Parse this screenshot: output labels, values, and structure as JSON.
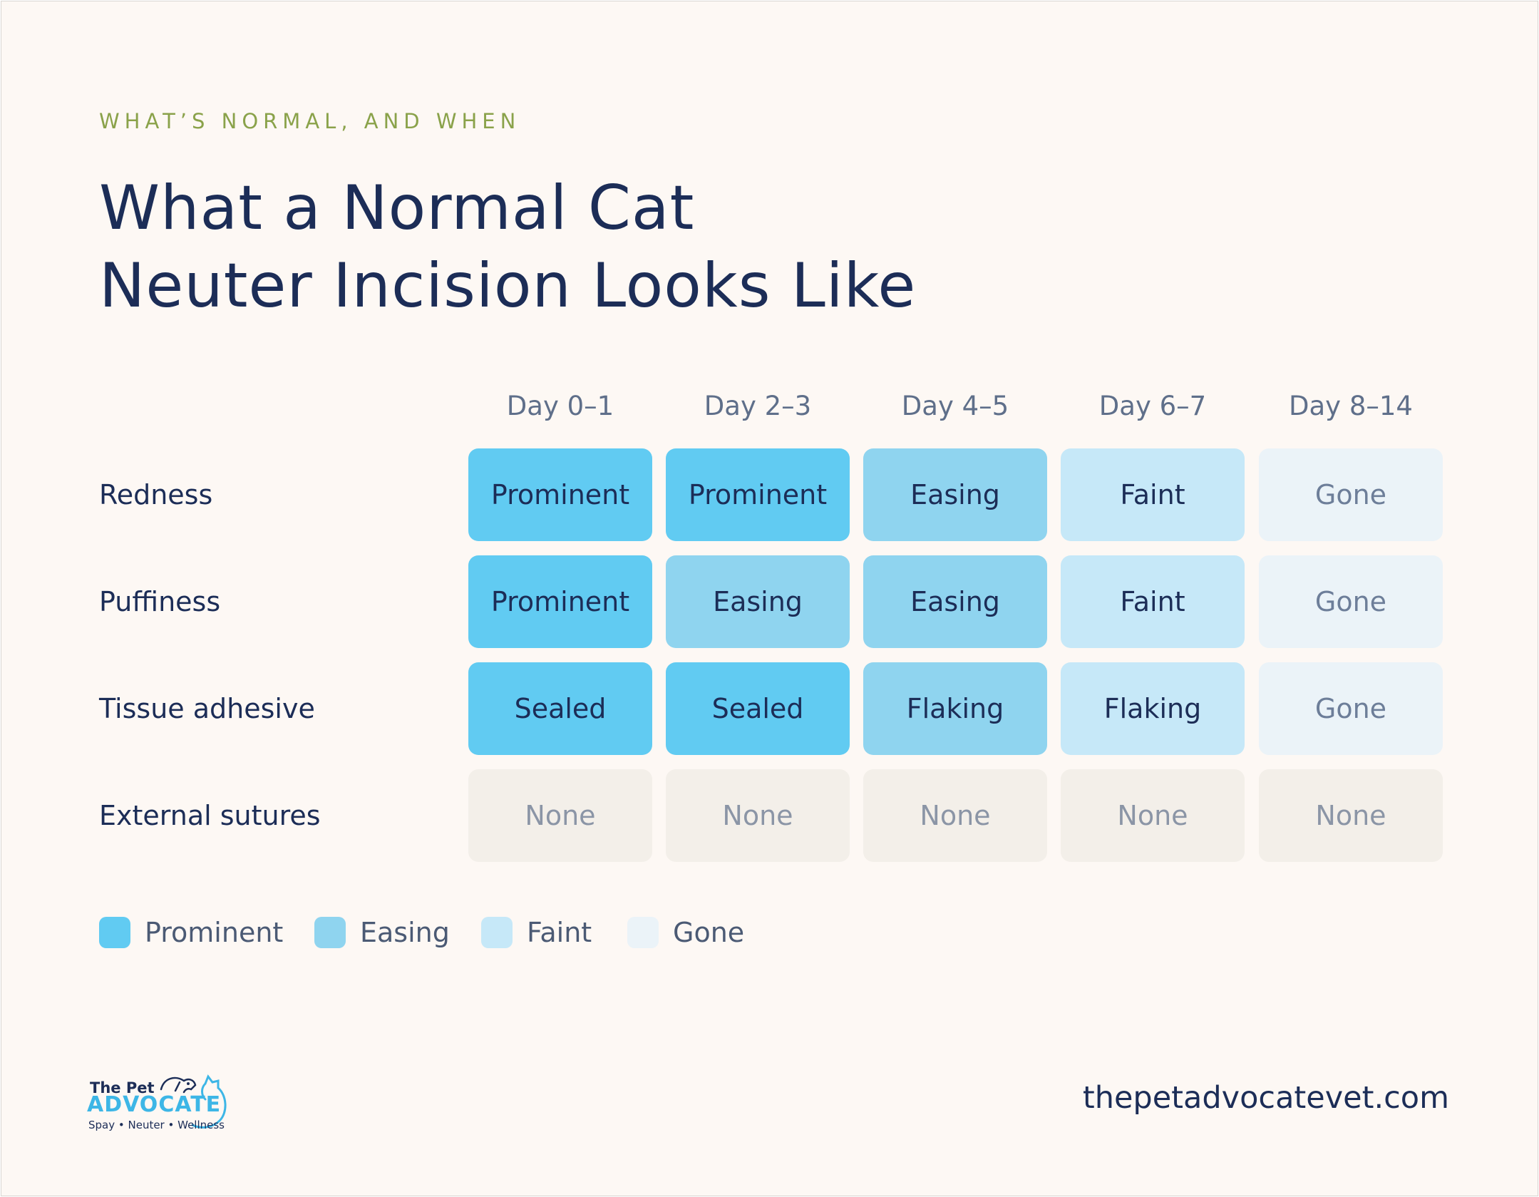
{
  "header": {
    "eyebrow": "WHAT’S NORMAL, AND WHEN",
    "title_line1": "What a Normal Cat",
    "title_line2": "Neuter Incision Looks Like"
  },
  "colors": {
    "prominent": "#61cbf2",
    "easing": "#8fd4ef",
    "faint": "#c6e8f8",
    "gone": "#ebf3f8",
    "none": "#f3efe9",
    "title": "#1c2d57",
    "eyebrow": "#8aa24a"
  },
  "chart_data": {
    "type": "table",
    "columns": [
      "Day 0–1",
      "Day 2–3",
      "Day 4–5",
      "Day 6–7",
      "Day 8–14"
    ],
    "rows": [
      {
        "label": "Redness",
        "values": [
          "Prominent",
          "Prominent",
          "Easing",
          "Faint",
          "Gone"
        ],
        "levels": [
          "prominent",
          "prominent",
          "easing",
          "faint",
          "gone"
        ]
      },
      {
        "label": "Puffiness",
        "values": [
          "Prominent",
          "Easing",
          "Easing",
          "Faint",
          "Gone"
        ],
        "levels": [
          "prominent",
          "easing",
          "easing",
          "faint",
          "gone"
        ]
      },
      {
        "label": "Tissue adhesive",
        "values": [
          "Sealed",
          "Sealed",
          "Flaking",
          "Flaking",
          "Gone"
        ],
        "levels": [
          "prominent",
          "prominent",
          "easing",
          "faint",
          "gone"
        ]
      },
      {
        "label": "External sutures",
        "values": [
          "None",
          "None",
          "None",
          "None",
          "None"
        ],
        "levels": [
          "none",
          "none",
          "none",
          "none",
          "none"
        ]
      }
    ],
    "legend": [
      {
        "label": "Prominent",
        "level": "prominent"
      },
      {
        "label": "Easing",
        "level": "easing"
      },
      {
        "label": "Faint",
        "level": "faint"
      },
      {
        "label": "Gone",
        "level": "gone"
      }
    ],
    "legend_placement": "bottom-left"
  },
  "footer": {
    "logo_line1": "The Pet",
    "logo_line2": "ADVOCATE",
    "logo_line3": "Spay • Neuter • Wellness",
    "website": "thepetadvocatevet.com"
  }
}
